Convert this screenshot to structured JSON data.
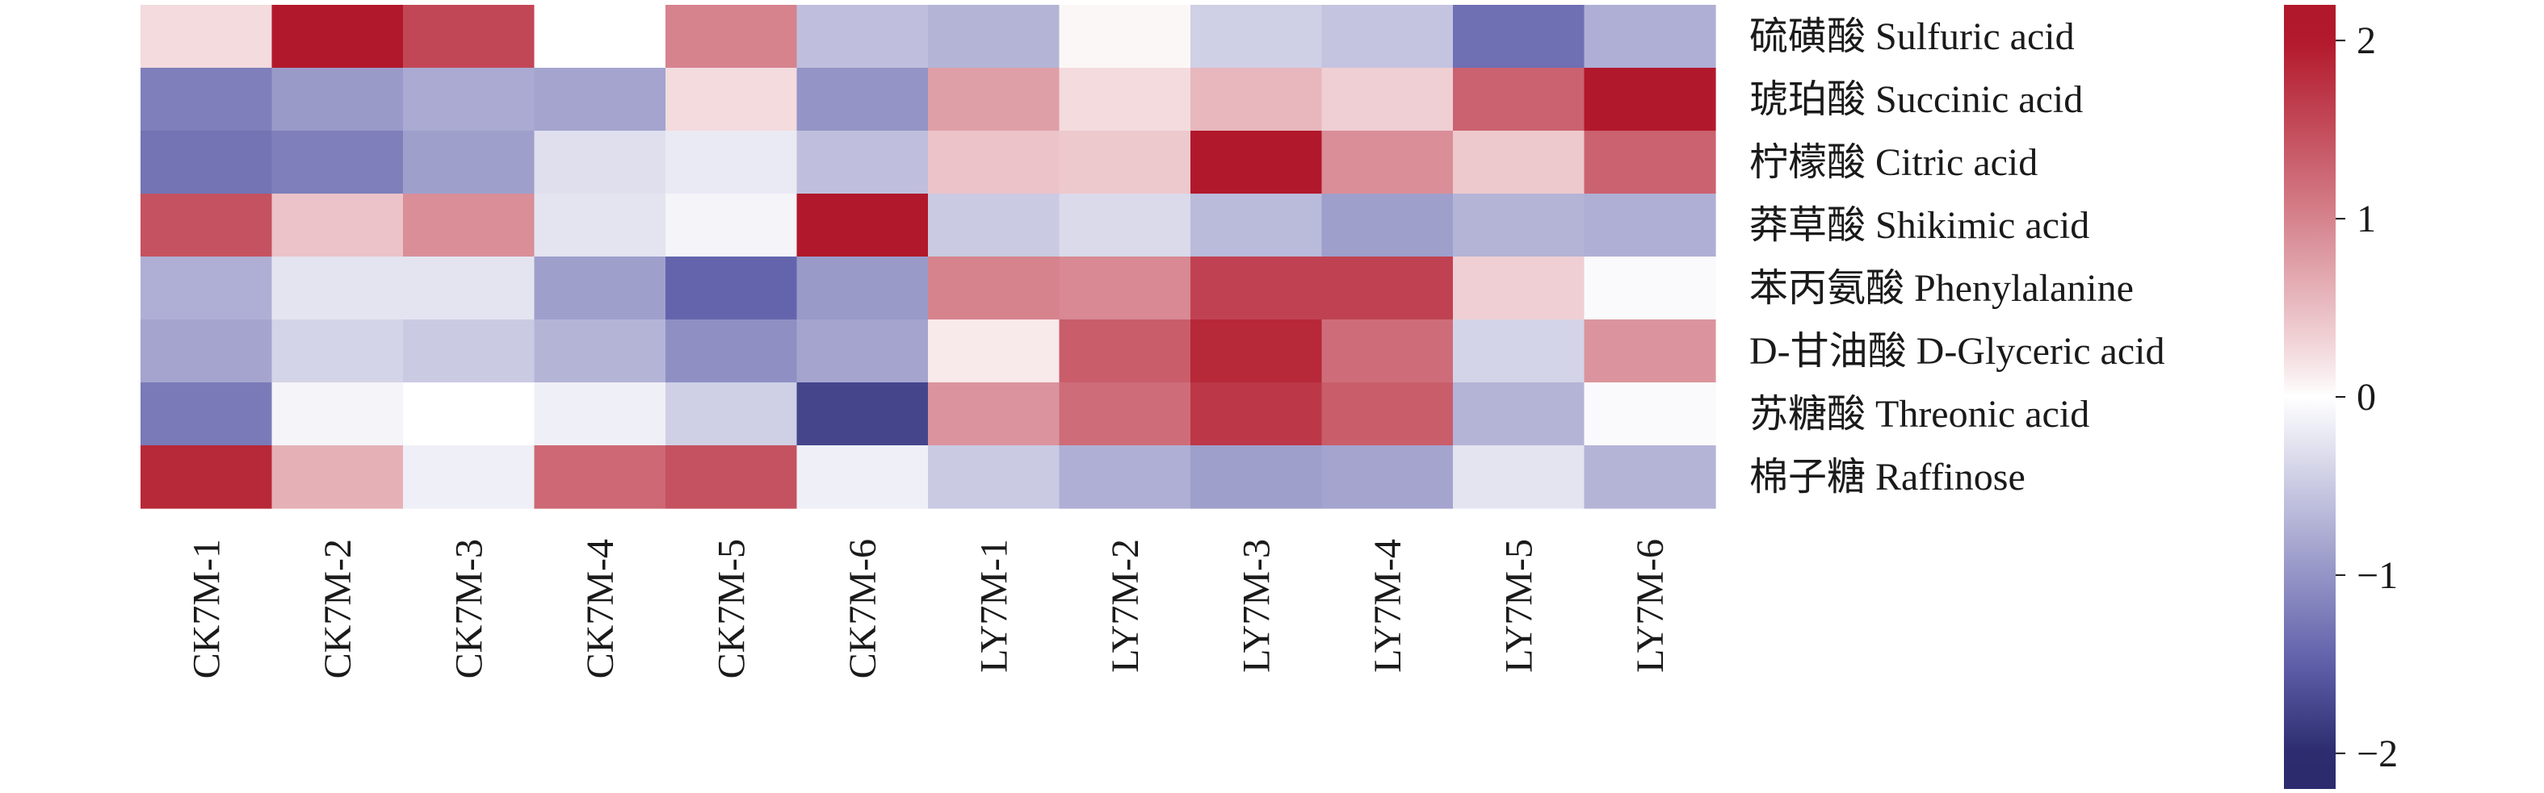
{
  "chart_data": {
    "type": "heatmap",
    "rows": [
      "硫磺酸 Sulfuric acid",
      "琥珀酸 Succinic acid",
      "柠檬酸 Citric acid",
      "莽草酸 Shikimic acid",
      "苯丙氨酸 Phenylalanine",
      "D-甘油酸 D-Glyceric acid",
      "苏糖酸 Threonic acid",
      "棉子糖 Raffinose"
    ],
    "columns": [
      "CK7M-1",
      "CK7M-2",
      "CK7M-3",
      "CK7M-4",
      "CK7M-5",
      "CK7M-6",
      "LY7M-1",
      "LY7M-2",
      "LY7M-3",
      "LY7M-4",
      "LY7M-5",
      "LY7M-6"
    ],
    "values": [
      [
        0.25,
        2.0,
        1.55,
        0.0,
        1.0,
        -0.6,
        -0.7,
        0.05,
        -0.45,
        -0.55,
        -1.35,
        -0.75
      ],
      [
        -1.2,
        -0.95,
        -0.8,
        -0.85,
        0.25,
        -1.0,
        0.75,
        0.25,
        0.55,
        0.35,
        1.3,
        2.0
      ],
      [
        -1.3,
        -1.2,
        -0.9,
        -0.3,
        -0.2,
        -0.6,
        0.45,
        0.4,
        2.0,
        0.9,
        0.4,
        1.3
      ],
      [
        1.45,
        0.45,
        0.9,
        -0.25,
        -0.1,
        2.05,
        -0.5,
        -0.35,
        -0.65,
        -0.9,
        -0.7,
        -0.75
      ],
      [
        -0.75,
        -0.25,
        -0.25,
        -0.9,
        -1.45,
        -0.95,
        1.0,
        0.95,
        1.6,
        1.6,
        0.35,
        -0.05
      ],
      [
        -0.85,
        -0.4,
        -0.5,
        -0.7,
        -1.05,
        -0.85,
        0.15,
        1.35,
        1.85,
        1.2,
        -0.4,
        0.85
      ],
      [
        -1.25,
        -0.1,
        0.0,
        -0.15,
        -0.45,
        -1.75,
        0.85,
        1.2,
        1.7,
        1.35,
        -0.7,
        -0.05
      ],
      [
        1.85,
        0.6,
        -0.15,
        1.25,
        1.45,
        -0.15,
        -0.5,
        -0.75,
        -0.9,
        -0.85,
        -0.25,
        -0.7
      ]
    ],
    "colorbar": {
      "min": -2.2,
      "max": 2.2,
      "ticks": [
        2,
        1,
        0,
        -1,
        -2
      ],
      "tick_labels": [
        "2",
        "1",
        "0",
        "−1",
        "−2"
      ],
      "colors": {
        "high": "#b2182b",
        "mid": "#ffffff",
        "low": "#2b2b6e"
      }
    }
  }
}
